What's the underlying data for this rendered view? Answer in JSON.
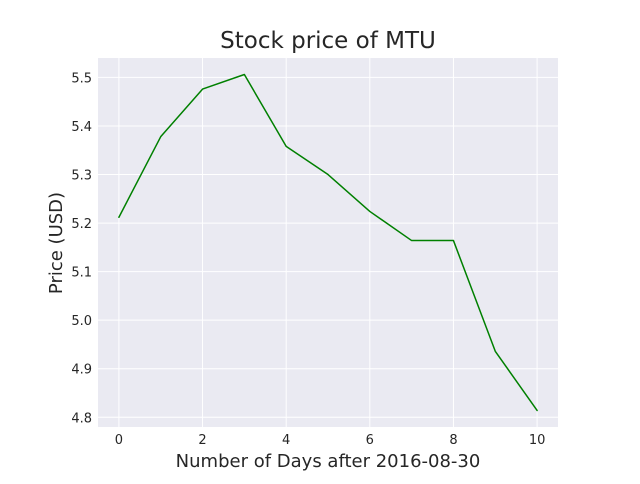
{
  "chart_data": {
    "type": "line",
    "title": "Stock price of MTU",
    "xlabel": "Number of Days after 2016-08-30",
    "ylabel": "Price (USD)",
    "xlim": [
      -0.5,
      10.5
    ],
    "ylim": [
      4.78,
      5.54
    ],
    "x_ticks": [
      0,
      2,
      4,
      6,
      8,
      10
    ],
    "y_ticks": [
      4.8,
      4.9,
      5.0,
      5.1,
      5.2,
      5.3,
      5.4,
      5.5
    ],
    "grid": true,
    "series": [
      {
        "name": "MTU",
        "color": "#008000",
        "x": [
          0,
          1,
          2,
          3,
          4,
          5,
          6,
          7,
          8,
          9,
          10
        ],
        "values": [
          5.212,
          5.378,
          5.476,
          5.506,
          5.358,
          5.3,
          5.224,
          5.164,
          5.164,
          4.936,
          4.814
        ]
      }
    ]
  },
  "colors": {
    "plot_background": "#eaeaf2",
    "grid": "#ffffff",
    "text": "#262626"
  }
}
